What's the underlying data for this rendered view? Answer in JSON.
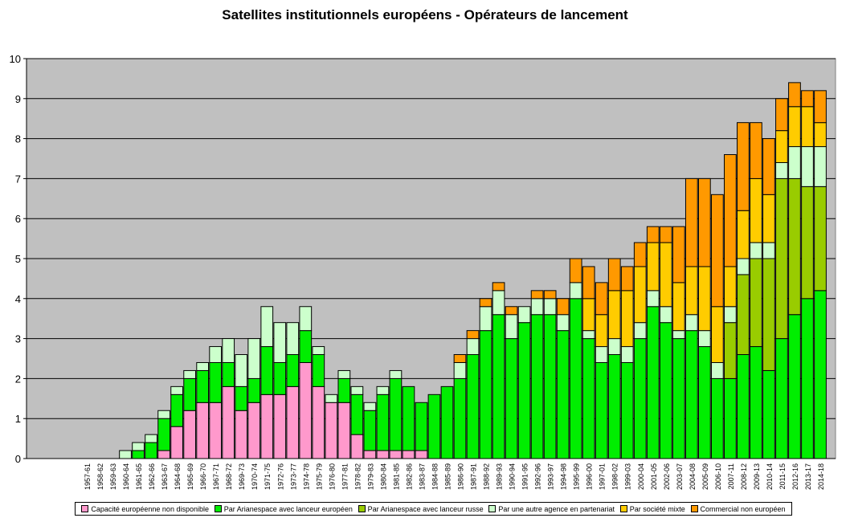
{
  "chart_data": {
    "type": "bar",
    "stacked": true,
    "title": "Satellites institutionnels européens - Opérateurs de lancement",
    "xlabel": "",
    "ylabel": "",
    "ylim": [
      0,
      10
    ],
    "yticks": [
      "0",
      "1",
      "2",
      "3",
      "4",
      "5",
      "6",
      "7",
      "8",
      "9",
      "10"
    ],
    "grid": true,
    "legend_position": "bottom",
    "plot_background": "#c0c0c0",
    "categories": [
      "1957-61",
      "1958-62",
      "1959-63",
      "1960-64",
      "1961-65",
      "1962-66",
      "1963-67",
      "1964-68",
      "1965-69",
      "1966-70",
      "1967-71",
      "1968-72",
      "1969-73",
      "1970-74",
      "1971-75",
      "1972-76",
      "1973-77",
      "1974-78",
      "1975-79",
      "1976-80",
      "1977-81",
      "1978-82",
      "1979-83",
      "1980-84",
      "1981-85",
      "1982-86",
      "1983-87",
      "1984-88",
      "1985-89",
      "1986-90",
      "1987-91",
      "1988-92",
      "1989-93",
      "1990-94",
      "1991-95",
      "1992-96",
      "1993-97",
      "1994-98",
      "1995-99",
      "1996-00",
      "1997-01",
      "1998-02",
      "1999-03",
      "2000-04",
      "2001-05",
      "2002-06",
      "2003-07",
      "2004-08",
      "2005-09",
      "2006-10",
      "2007-11",
      "2008-12",
      "2009-13",
      "2010-14",
      "2011-15",
      "2012-16",
      "2013-17",
      "2014-18"
    ],
    "series": [
      {
        "name": "Capacité européenne non disponible",
        "color": "#ff99cc",
        "values": [
          0,
          0,
          0,
          0,
          0,
          0,
          0.2,
          0.8,
          1.2,
          1.4,
          1.4,
          1.8,
          1.2,
          1.4,
          1.6,
          1.6,
          1.8,
          2.4,
          1.8,
          1.4,
          1.4,
          0.6,
          0.2,
          0.2,
          0.2,
          0.2,
          0.2,
          0,
          0,
          0,
          0,
          0,
          0,
          0,
          0,
          0,
          0,
          0,
          0,
          0,
          0,
          0,
          0,
          0,
          0,
          0,
          0,
          0,
          0,
          0,
          0,
          0,
          0,
          0,
          0,
          0,
          0,
          0
        ]
      },
      {
        "name": "Par Arianespace avec lanceur européen",
        "color": "#00ee00",
        "values": [
          0,
          0,
          0,
          0,
          0.2,
          0.4,
          0.8,
          0.8,
          0.8,
          0.8,
          1.0,
          0.6,
          0.6,
          0.6,
          1.2,
          0.8,
          0.8,
          0.8,
          0.8,
          0,
          0.6,
          1.0,
          1.0,
          1.4,
          1.8,
          1.6,
          1.2,
          1.6,
          1.8,
          2.0,
          2.6,
          3.2,
          3.6,
          3.0,
          3.4,
          3.6,
          3.6,
          3.2,
          4.0,
          3.0,
          2.4,
          2.6,
          2.4,
          3.0,
          3.8,
          3.4,
          3.0,
          3.2,
          2.8,
          2.0,
          2.0,
          2.6,
          2.8,
          2.2,
          3.0,
          3.6,
          4.0,
          4.2
        ]
      },
      {
        "name": "Par Arianespace avec lanceur russe",
        "color": "#99cc00",
        "values": [
          0,
          0,
          0,
          0,
          0,
          0,
          0,
          0,
          0,
          0,
          0,
          0,
          0,
          0,
          0,
          0,
          0,
          0,
          0,
          0,
          0,
          0,
          0,
          0,
          0,
          0,
          0,
          0,
          0,
          0,
          0,
          0,
          0,
          0,
          0,
          0,
          0,
          0,
          0,
          0,
          0,
          0,
          0,
          0,
          0,
          0,
          0,
          0,
          0,
          0,
          1.4,
          2.0,
          2.2,
          2.8,
          4.0,
          3.4,
          2.8,
          2.6
        ]
      },
      {
        "name": "Par une autre agence en partenariat",
        "color": "#ccffcc",
        "values": [
          0,
          0,
          0,
          0.2,
          0.2,
          0.2,
          0.2,
          0.2,
          0.2,
          0.2,
          0.4,
          0.6,
          0.8,
          1.0,
          1.0,
          1.0,
          0.8,
          0.6,
          0.2,
          0.2,
          0.2,
          0.2,
          0.2,
          0.2,
          0.2,
          0,
          0,
          0,
          0,
          0.4,
          0.4,
          0.6,
          0.6,
          0.6,
          0.4,
          0.4,
          0.4,
          0.4,
          0.4,
          0.2,
          0.4,
          0.4,
          0.4,
          0.4,
          0.4,
          0.4,
          0.2,
          0.4,
          0.4,
          0.4,
          0.4,
          0.4,
          0.4,
          0.4,
          0.4,
          0.8,
          1.0,
          1.0
        ]
      },
      {
        "name": "Par société mixte",
        "color": "#ffcc00",
        "values": [
          0,
          0,
          0,
          0,
          0,
          0,
          0,
          0,
          0,
          0,
          0,
          0,
          0,
          0,
          0,
          0,
          0,
          0,
          0,
          0,
          0,
          0,
          0,
          0,
          0,
          0,
          0,
          0,
          0,
          0,
          0,
          0,
          0,
          0,
          0,
          0,
          0,
          0,
          0,
          0.8,
          0.8,
          1.2,
          1.4,
          1.4,
          1.2,
          1.6,
          1.2,
          1.2,
          1.6,
          1.4,
          1.0,
          1.2,
          1.6,
          1.2,
          0.8,
          1.0,
          1.0,
          0.6
        ]
      },
      {
        "name": "Commercial non européen",
        "color": "#ff9900",
        "values": [
          0,
          0,
          0,
          0,
          0,
          0,
          0,
          0,
          0,
          0,
          0,
          0,
          0,
          0,
          0,
          0,
          0,
          0,
          0,
          0,
          0,
          0,
          0,
          0,
          0,
          0,
          0,
          0,
          0,
          0.2,
          0.2,
          0.2,
          0.2,
          0.2,
          0,
          0.2,
          0.2,
          0.4,
          0.6,
          0.8,
          0.8,
          0.8,
          0.6,
          0.6,
          0.4,
          0.4,
          1.4,
          2.2,
          2.2,
          2.8,
          2.8,
          2.2,
          1.4,
          1.4,
          0.8,
          0.6,
          0.4,
          0.8
        ]
      }
    ]
  }
}
